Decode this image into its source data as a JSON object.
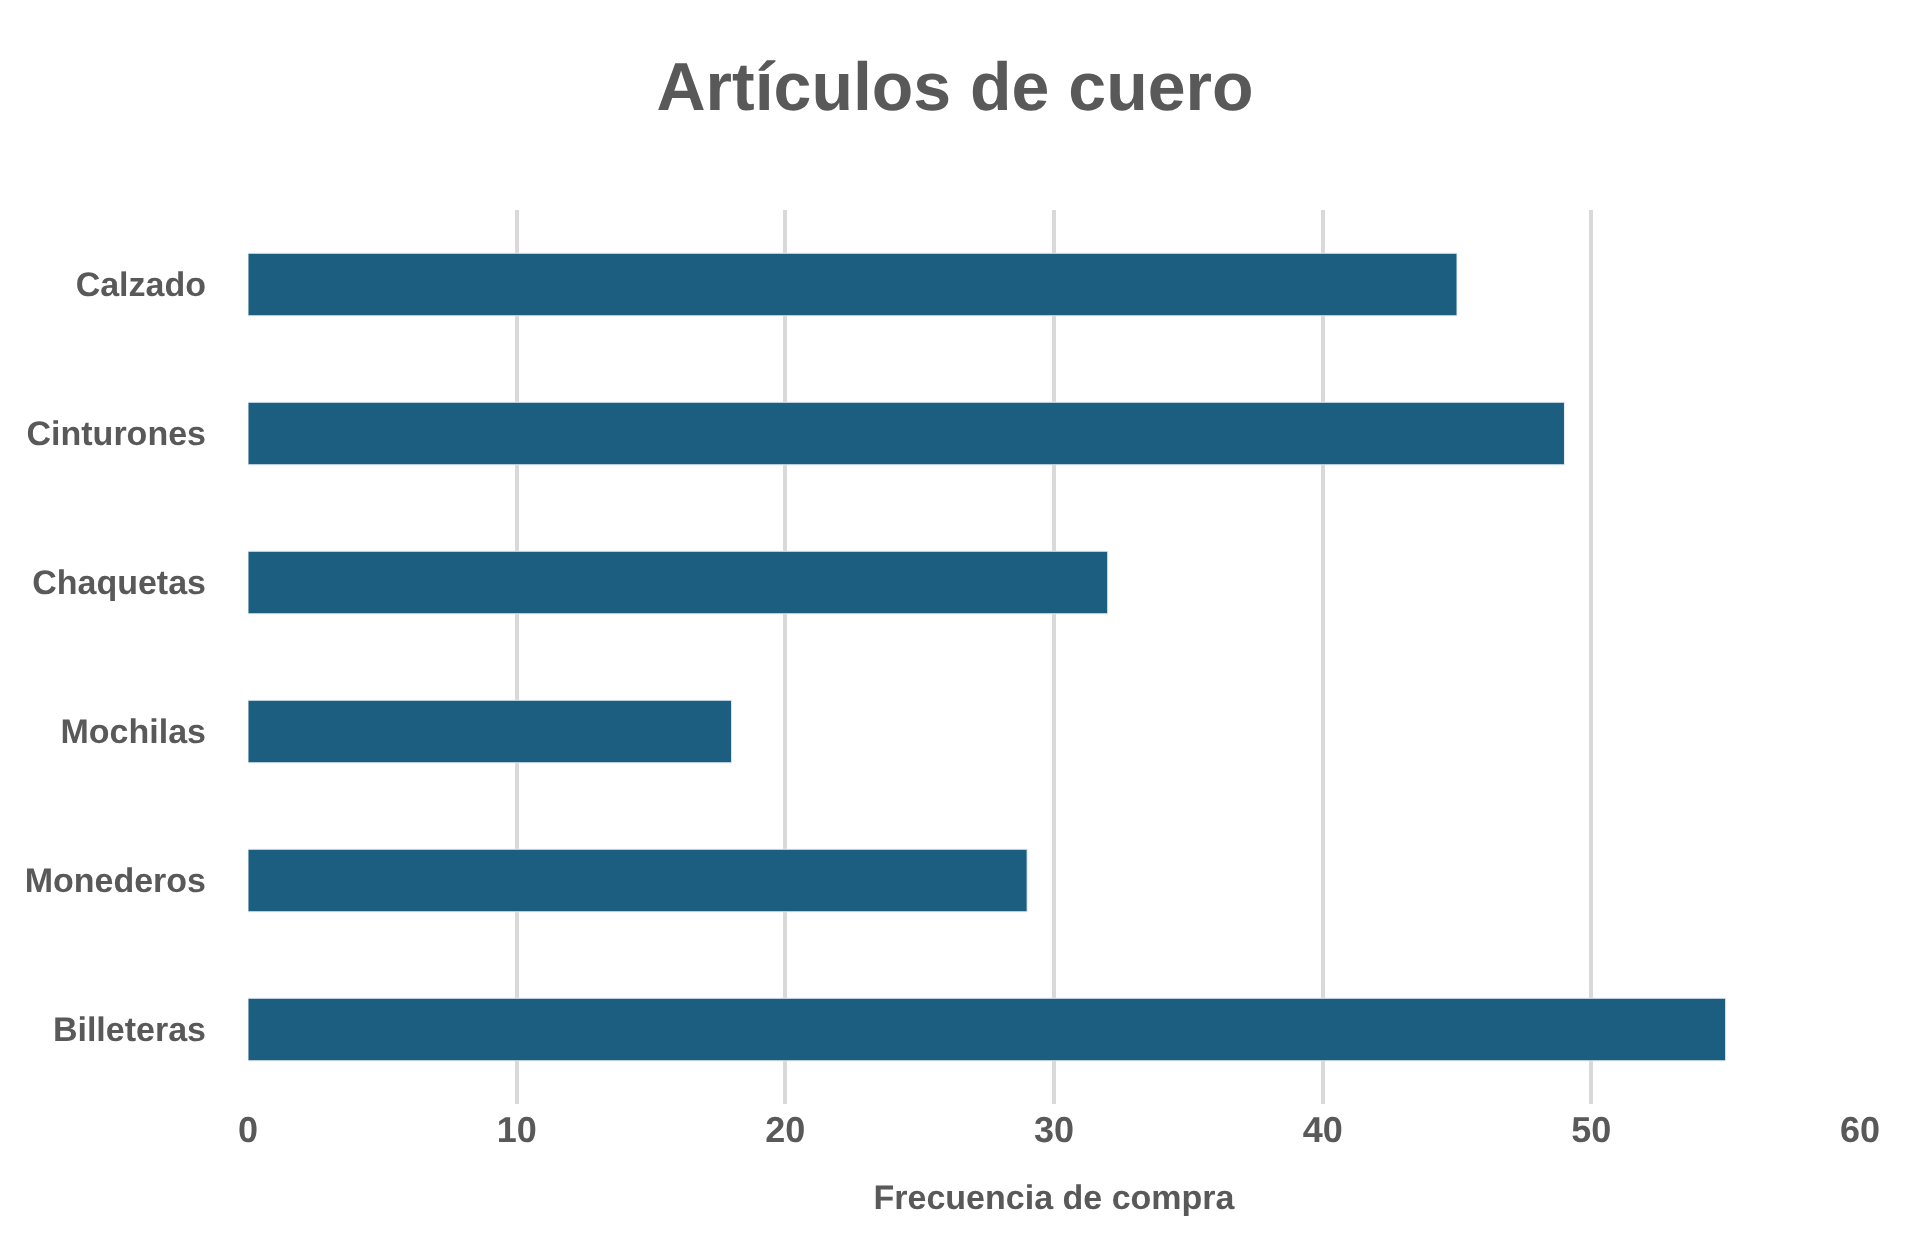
{
  "chart_data": {
    "type": "bar",
    "orientation": "horizontal",
    "title": "Artículos de cuero",
    "xlabel": "Frecuencia de compra",
    "categories": [
      "Calzado",
      "Cinturones",
      "Chaquetas",
      "Mochilas",
      "Monederos",
      "Billeteras"
    ],
    "series": [
      {
        "color": "#1b5e80",
        "values": [
          45,
          49,
          32,
          18,
          29,
          55
        ]
      }
    ],
    "xlim": [
      0,
      60
    ],
    "xticks": [
      0,
      10,
      20,
      30,
      40,
      50,
      60
    ],
    "grid": "x"
  }
}
